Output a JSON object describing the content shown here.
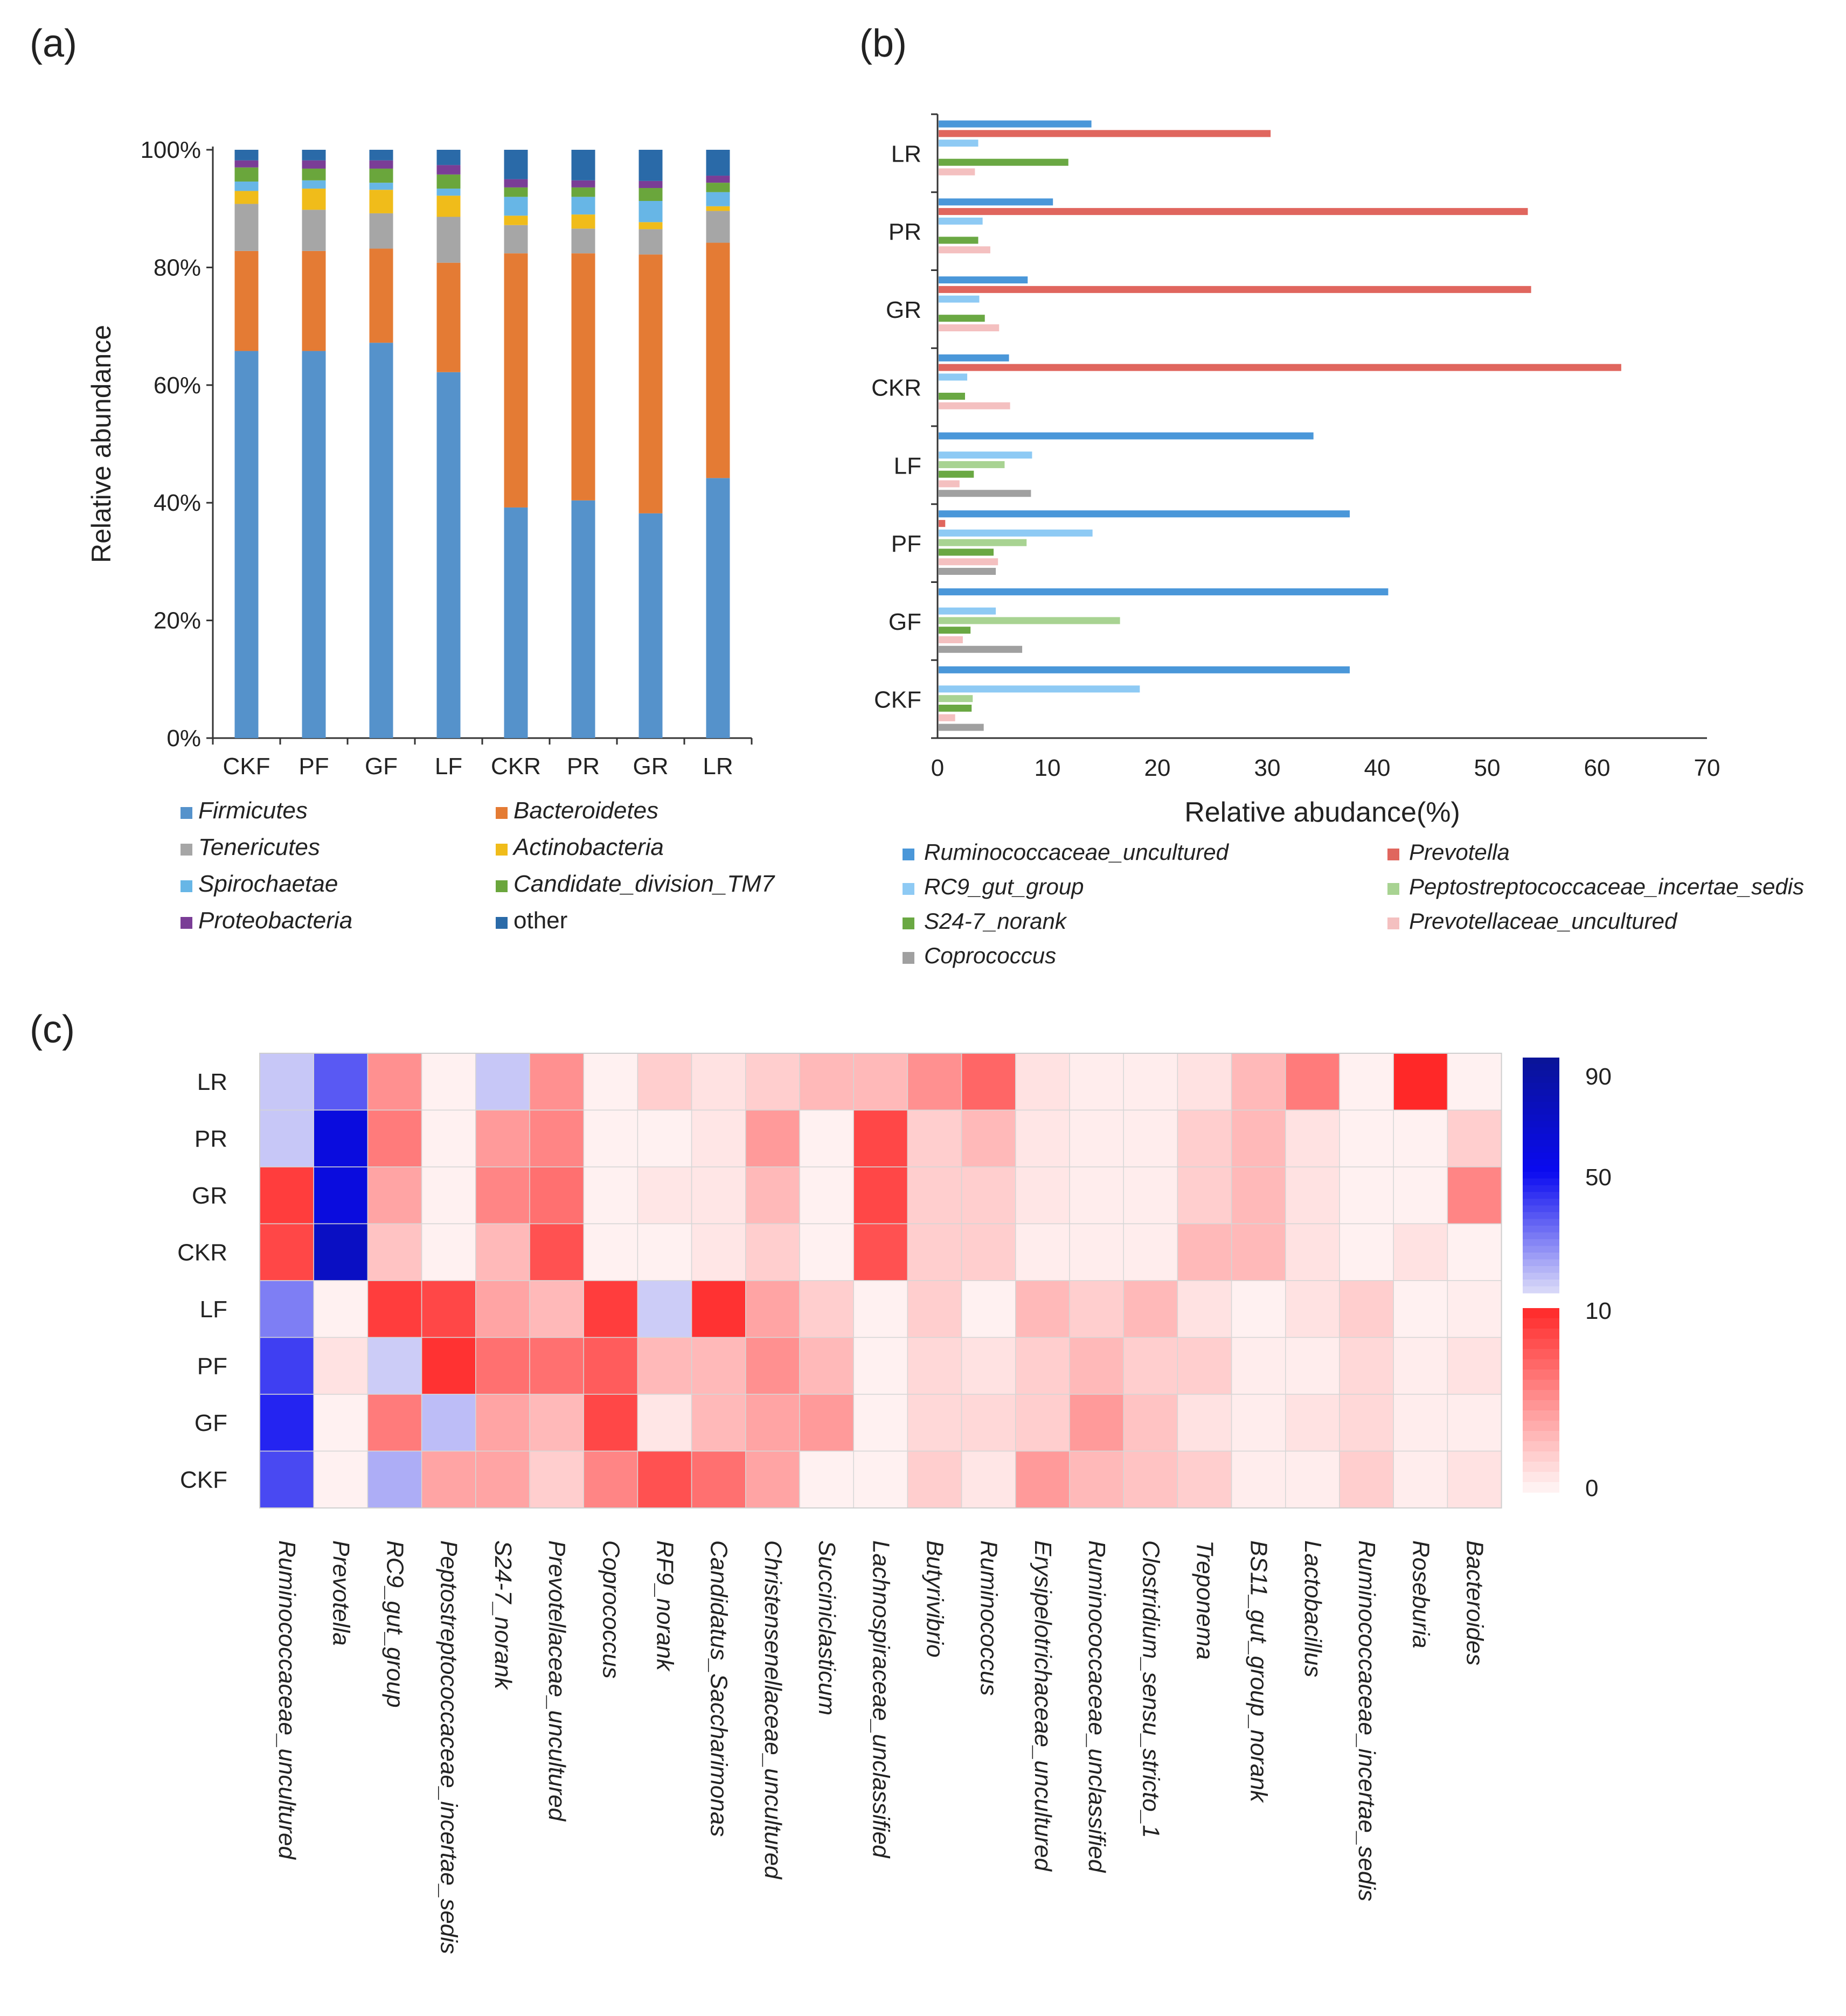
{
  "panel_labels": [
    "(a)",
    "(b)",
    "(c)"
  ],
  "colors": {
    "Firmicutes": "#5592cb",
    "Bacteroidetes": "#e47b34",
    "Tenericutes": "#a6a6a6",
    "Actinobacteria": "#f0bc1a",
    "Spirochaetae": "#67b6e6",
    "Candidate_division_TM7": "#6aa63c",
    "Proteobacteria": "#7a3d96",
    "other": "#2a6aa8",
    "Ruminococcaceae_uncultured": "#4a97d9",
    "Prevotella": "#e0665e",
    "RC9_gut_group": "#8ecaf4",
    "Peptostreptococcaceae_incertae_sedis": "#a8d392",
    "S24-7_norank": "#6aa843",
    "Prevotellaceae_uncultured": "#f4c0c0",
    "Coprococcus": "#a0a0a0"
  },
  "chart_data": [
    {
      "type": "bar",
      "stacked": true,
      "ylabel": "Relative abundance",
      "yticks": [
        "0%",
        "20%",
        "40%",
        "60%",
        "80%",
        "100%"
      ],
      "ylim": [
        0,
        100
      ],
      "categories": [
        "CKF",
        "PF",
        "GF",
        "LF",
        "CKR",
        "PR",
        "GR",
        "LR"
      ],
      "series": [
        {
          "name": "Firmicutes",
          "values": [
            65.8,
            65.8,
            67.2,
            62.2,
            39.2,
            40.4,
            38.2,
            44.2
          ]
        },
        {
          "name": "Bacteroidetes",
          "values": [
            17.0,
            17.0,
            16.0,
            18.6,
            43.2,
            42.0,
            44.0,
            40.0
          ]
        },
        {
          "name": "Tenericutes",
          "values": [
            8.0,
            7.0,
            6.0,
            7.8,
            4.8,
            4.2,
            4.3,
            5.4
          ]
        },
        {
          "name": "Actinobacteria",
          "values": [
            2.2,
            3.6,
            4.0,
            3.6,
            1.6,
            2.4,
            1.2,
            0.8
          ]
        },
        {
          "name": "Spirochaetae",
          "values": [
            1.6,
            1.4,
            1.2,
            1.2,
            3.2,
            3.0,
            3.6,
            2.4
          ]
        },
        {
          "name": "Candidate_division_TM7",
          "values": [
            2.4,
            2.0,
            2.4,
            2.4,
            1.6,
            1.6,
            2.2,
            1.6
          ]
        },
        {
          "name": "Proteobacteria",
          "values": [
            1.2,
            1.4,
            1.4,
            1.6,
            1.4,
            1.2,
            1.2,
            1.2
          ]
        },
        {
          "name": "other",
          "values": [
            1.8,
            1.8,
            1.8,
            2.6,
            5.0,
            5.2,
            5.3,
            4.4
          ]
        }
      ],
      "legend": [
        "Firmicutes",
        "Bacteroidetes",
        "Tenericutes",
        "Actinobacteria",
        "Spirochaetae",
        "Candidate_division_TM7",
        "Proteobacteria",
        "other"
      ],
      "legend_position": "bottom"
    },
    {
      "type": "bar",
      "orientation": "horizontal",
      "xlabel": "Relative abudance(%)",
      "xlim": [
        0,
        70
      ],
      "xticks": [
        "0",
        "10",
        "20",
        "30",
        "40",
        "50",
        "60",
        "70"
      ],
      "categories": [
        "LR",
        "PR",
        "GR",
        "CKR",
        "LF",
        "PF",
        "GF",
        "CKF"
      ],
      "series": [
        {
          "name": "Ruminococcaceae_uncultured",
          "values": [
            14.0,
            10.5,
            8.2,
            6.5,
            34.2,
            37.5,
            41.0,
            37.5
          ]
        },
        {
          "name": "Prevotella",
          "values": [
            30.3,
            53.7,
            54.0,
            62.2,
            0,
            0.7,
            0,
            0
          ]
        },
        {
          "name": "RC9_gut_group",
          "values": [
            3.7,
            4.1,
            3.8,
            2.7,
            8.6,
            14.1,
            5.3,
            18.4
          ]
        },
        {
          "name": "Peptostreptococcaceae_incertae_sedis",
          "values": [
            0,
            0,
            0,
            0,
            6.1,
            8.1,
            16.6,
            3.2
          ]
        },
        {
          "name": "S24-7_norank",
          "values": [
            11.9,
            3.7,
            4.3,
            2.5,
            3.3,
            5.1,
            3.0,
            3.1
          ]
        },
        {
          "name": "Prevotellaceae_uncultured",
          "values": [
            3.4,
            4.8,
            5.6,
            6.6,
            2.0,
            5.5,
            2.3,
            1.6
          ]
        },
        {
          "name": "Coprococcus",
          "values": [
            0,
            0,
            0,
            0,
            8.5,
            5.3,
            7.7,
            4.2
          ]
        }
      ],
      "legend": [
        "Ruminococcaceae_uncultured",
        "Prevotella",
        "RC9_gut_group",
        "Peptostreptococcaceae_incertae_sedis",
        "S24-7_norank",
        "Prevotellaceae_uncultured",
        "Coprococcus"
      ],
      "legend_position": "bottom"
    },
    {
      "type": "heatmap",
      "rows": [
        "LR",
        "PR",
        "GR",
        "CKR",
        "LF",
        "PF",
        "GF",
        "CKF"
      ],
      "columns": [
        "Ruminococcaceae_uncultured",
        "Prevotella",
        "RC9_gut_group",
        "Peptostreptococcaceae_incertae_sedis",
        "S24-7_norank",
        "Prevotellaceae_uncultured",
        "Coprococcus",
        "RF9_norank",
        "Candidatus_Saccharimonas",
        "Christensenellaceae_uncultured",
        "Succiniclasticum",
        "Lachnospiraceae_unclassified",
        "Butyrivibrio",
        "Ruminococcus",
        "Erysipelotrichaceae_uncultured",
        "Ruminococcaceae_unclassified",
        "Clostridium_sensu_stricto_1",
        "Treponema",
        "BS11_gut_group_norank",
        "Lactobacillus",
        "Ruminococcaceae_incertae_sedis",
        "Roseburia",
        "Bacteroides"
      ],
      "values": [
        [
          14,
          35,
          5,
          0.3,
          14,
          5,
          0.3,
          2,
          1,
          2,
          3,
          3,
          5,
          7,
          1,
          0.5,
          0.5,
          1,
          3,
          6,
          0.3,
          10,
          0.3
        ],
        [
          14,
          58,
          6,
          0.3,
          4.5,
          5.5,
          0.3,
          0.3,
          0.8,
          4.5,
          0.3,
          8.5,
          2,
          3,
          0.8,
          0.5,
          0.5,
          2,
          3,
          1,
          0.3,
          0.3,
          2
        ],
        [
          9,
          58,
          4,
          0.3,
          5.5,
          6.5,
          0.3,
          0.8,
          0.8,
          3,
          0.3,
          8.5,
          2,
          2,
          0.8,
          0.5,
          0.5,
          2,
          3,
          1,
          0.3,
          0.3,
          5.5
        ],
        [
          8.5,
          70,
          2.5,
          0.3,
          3,
          8,
          0.3,
          0.3,
          0.8,
          2,
          0.3,
          8,
          2,
          2,
          0.5,
          0.5,
          0.5,
          3,
          3,
          1,
          0.3,
          1,
          0.3
        ],
        [
          28,
          0.3,
          9,
          8.5,
          4,
          3,
          9,
          13,
          9.5,
          4,
          2,
          0.3,
          2,
          0.3,
          3,
          2,
          3,
          1,
          0.3,
          1,
          2,
          0.3,
          0.5
        ],
        [
          40,
          1,
          13,
          9.5,
          6.5,
          6.5,
          7.5,
          3,
          3,
          5,
          3,
          0.3,
          1.5,
          1,
          2,
          3,
          2,
          2,
          0.5,
          0.5,
          1.5,
          0.5,
          1
        ],
        [
          45,
          0.3,
          6,
          16,
          4,
          3,
          8.5,
          0.8,
          3,
          4,
          4.5,
          0.3,
          1.5,
          1.5,
          2,
          4.5,
          2.5,
          1,
          0.5,
          1,
          1.5,
          0.5,
          0.5
        ],
        [
          38,
          0.3,
          19,
          4,
          4,
          2,
          5.5,
          8,
          6.5,
          4,
          0.3,
          0.3,
          2,
          0.8,
          4.5,
          3,
          2.5,
          2,
          0.5,
          0.5,
          2,
          0.5,
          1
        ]
      ],
      "colorbar_ticks": [
        "90",
        "50",
        "10",
        "0"
      ]
    }
  ]
}
